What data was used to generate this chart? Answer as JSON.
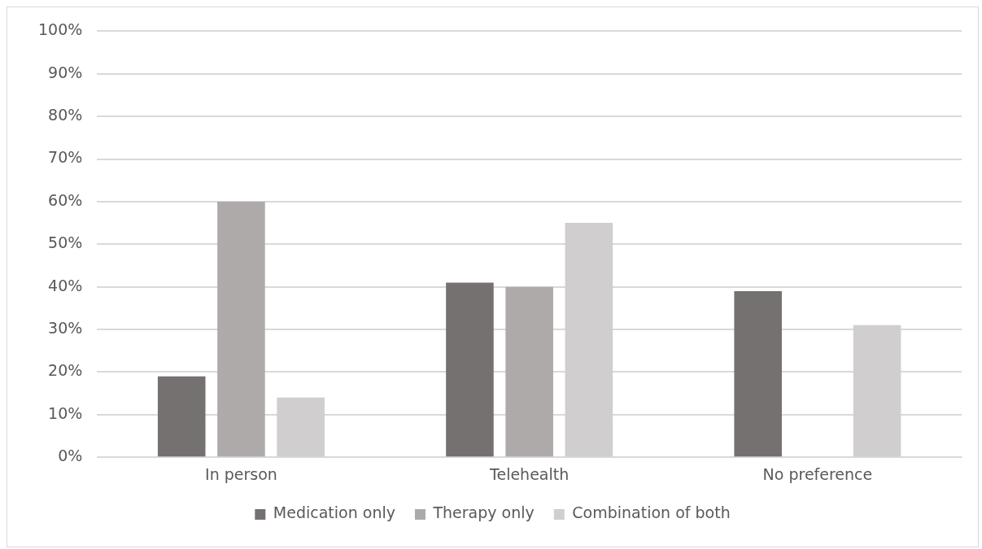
{
  "chart_data": {
    "type": "bar",
    "categories": [
      "In person",
      "Telehealth",
      "No preference"
    ],
    "series": [
      {
        "name": "Medication only",
        "color": "#767171",
        "values": [
          19,
          41,
          39
        ]
      },
      {
        "name": "Therapy only",
        "color": "#aeaaaa",
        "values": [
          60,
          40,
          0
        ]
      },
      {
        "name": "Combination of both",
        "color": "#d0cece",
        "values": [
          14,
          55,
          31
        ]
      }
    ],
    "ylim": [
      0,
      100
    ],
    "yticks": [
      {
        "value": 0,
        "label": "0%"
      },
      {
        "value": 10,
        "label": "10%"
      },
      {
        "value": 20,
        "label": "20%"
      },
      {
        "value": 30,
        "label": "30%"
      },
      {
        "value": 40,
        "label": "40%"
      },
      {
        "value": 50,
        "label": "50%"
      },
      {
        "value": 60,
        "label": "60%"
      },
      {
        "value": 70,
        "label": "70%"
      },
      {
        "value": 80,
        "label": "80%"
      },
      {
        "value": 90,
        "label": "90%"
      },
      {
        "value": 100,
        "label": "100%"
      }
    ],
    "grid": "y",
    "legend": "bottom"
  }
}
